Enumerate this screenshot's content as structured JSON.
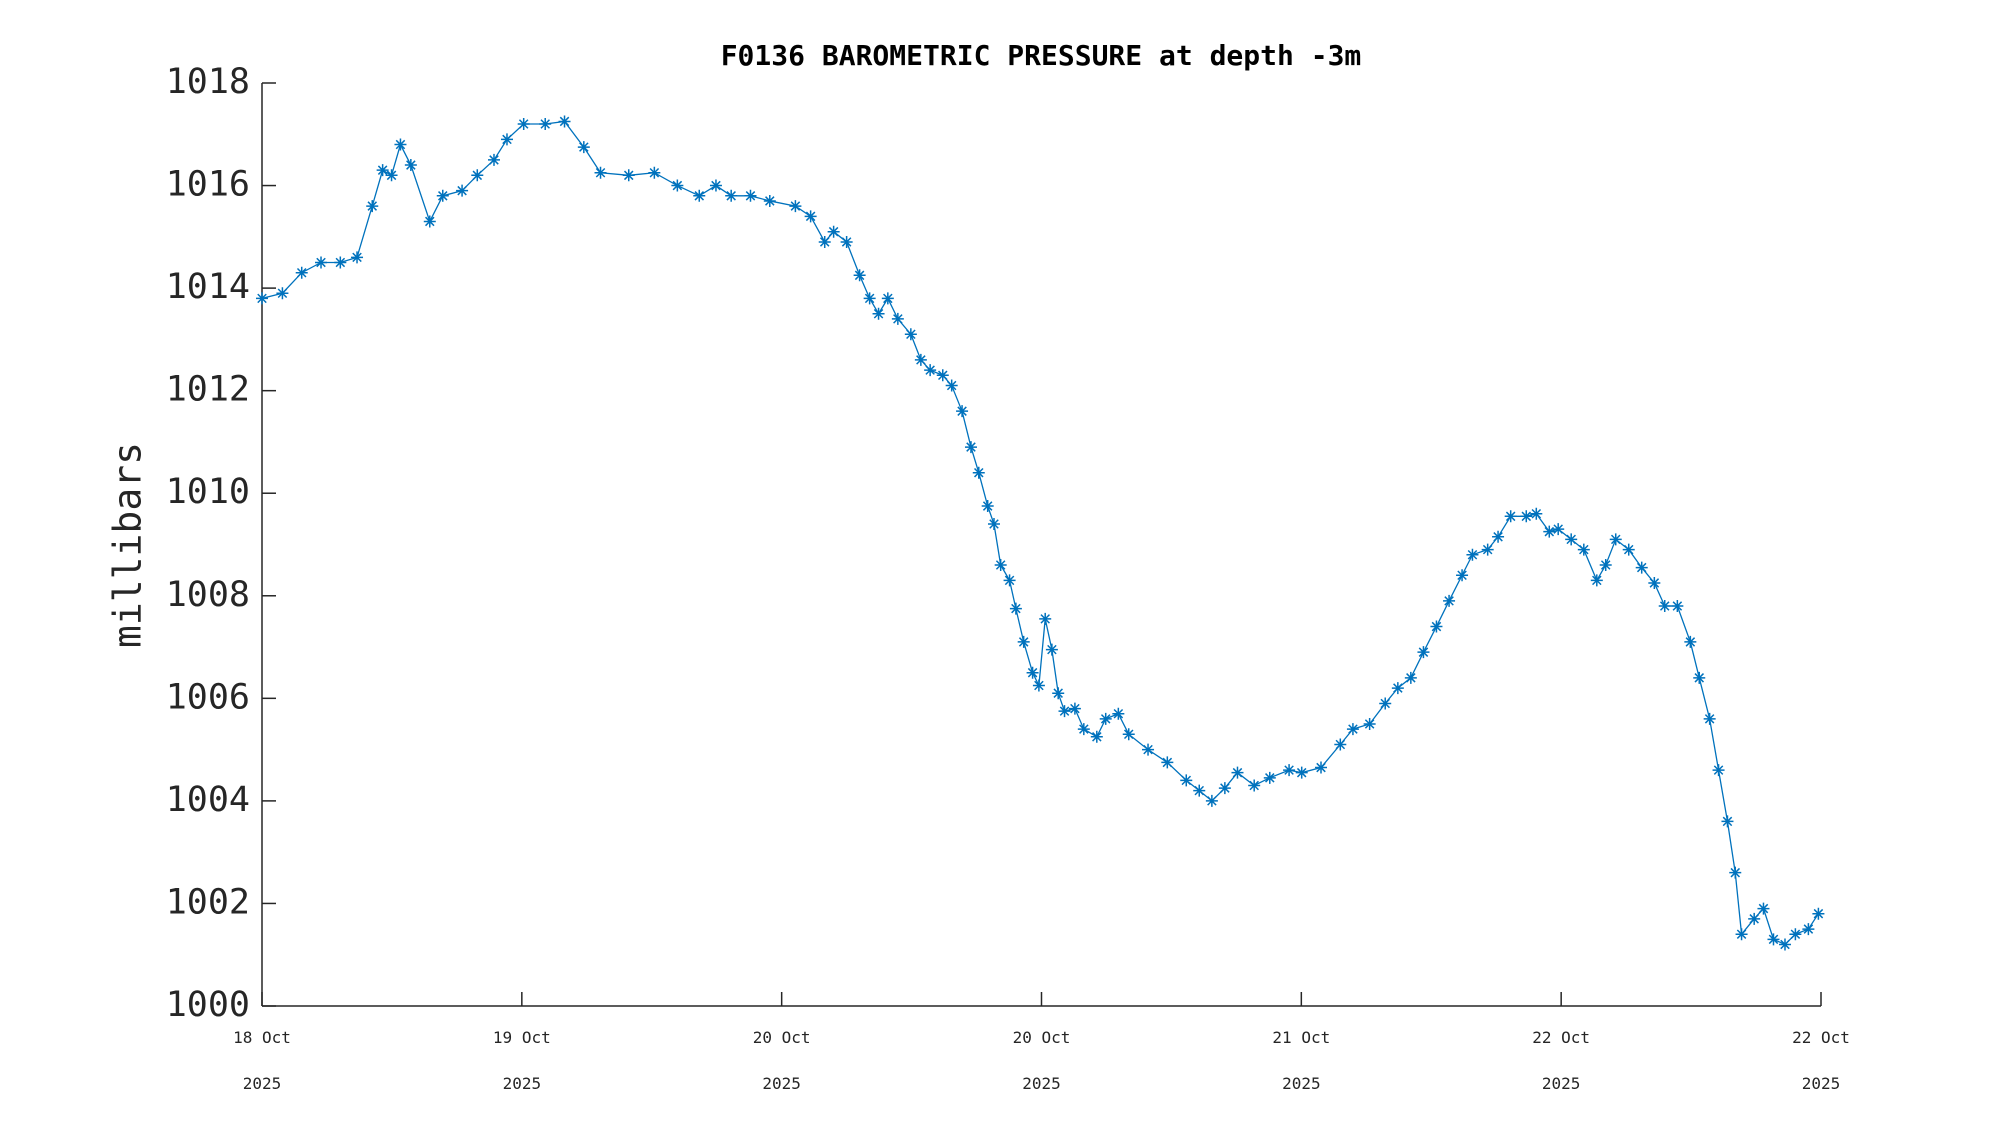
{
  "chart_data": {
    "type": "line",
    "title": "F0136 BAROMETRIC PRESSURE at depth -3m",
    "y_label": "millibars",
    "marker": "asterisk",
    "grid": false,
    "x": [
      0.7,
      0.755,
      0.807,
      0.859,
      0.911,
      0.956,
      0.997,
      1.025,
      1.049,
      1.073,
      1.101,
      1.152,
      1.187,
      1.239,
      1.28,
      1.325,
      1.36,
      1.405,
      1.463,
      1.515,
      1.567,
      1.612,
      1.688,
      1.757,
      1.819,
      1.878,
      1.923,
      1.964,
      2.016,
      2.068,
      2.137,
      2.178,
      2.216,
      2.24,
      2.275,
      2.31,
      2.337,
      2.361,
      2.386,
      2.413,
      2.448,
      2.475,
      2.5,
      2.534,
      2.558,
      2.586,
      2.61,
      2.631,
      2.655,
      2.672,
      2.69,
      2.714,
      2.731,
      2.752,
      2.776,
      2.793,
      2.81,
      2.828,
      2.845,
      2.862,
      2.89,
      2.914,
      2.949,
      2.973,
      3.007,
      3.035,
      3.087,
      3.139,
      3.19,
      3.225,
      3.259,
      3.294,
      3.328,
      3.373,
      3.415,
      3.467,
      3.501,
      3.553,
      3.605,
      3.639,
      3.684,
      3.726,
      3.76,
      3.795,
      3.829,
      3.864,
      3.898,
      3.933,
      3.961,
      4.002,
      4.03,
      4.064,
      4.106,
      4.133,
      4.168,
      4.192,
      4.227,
      4.261,
      4.296,
      4.32,
      4.347,
      4.382,
      4.417,
      4.451,
      4.479,
      4.513,
      4.548,
      4.572,
      4.6,
      4.624,
      4.648,
      4.669,
      4.686,
      4.72,
      4.745,
      4.772,
      4.803,
      4.831,
      4.866,
      4.893
    ],
    "series": [
      {
        "color": "#0072BD",
        "values": [
          1013.8,
          1013.9,
          1014.3,
          1014.5,
          1014.5,
          1014.6,
          1015.6,
          1016.3,
          1016.2,
          1016.8,
          1016.4,
          1015.3,
          1015.8,
          1015.9,
          1016.2,
          1016.5,
          1016.9,
          1017.2,
          1017.2,
          1017.25,
          1016.75,
          1016.25,
          1016.2,
          1016.25,
          1016.0,
          1015.8,
          1016.0,
          1015.8,
          1015.8,
          1015.7,
          1015.6,
          1015.4,
          1014.9,
          1015.1,
          1014.9,
          1014.25,
          1013.8,
          1013.5,
          1013.8,
          1013.4,
          1013.1,
          1012.6,
          1012.4,
          1012.3,
          1012.1,
          1011.6,
          1010.9,
          1010.4,
          1009.75,
          1009.4,
          1008.6,
          1008.3,
          1007.75,
          1007.1,
          1006.5,
          1006.25,
          1007.55,
          1006.95,
          1006.1,
          1005.75,
          1005.8,
          1005.4,
          1005.25,
          1005.6,
          1005.7,
          1005.3,
          1005.0,
          1004.75,
          1004.4,
          1004.2,
          1004.0,
          1004.25,
          1004.55,
          1004.3,
          1004.45,
          1004.6,
          1004.55,
          1004.65,
          1005.1,
          1005.4,
          1005.5,
          1005.9,
          1006.2,
          1006.4,
          1006.9,
          1007.4,
          1007.9,
          1008.4,
          1008.8,
          1008.9,
          1009.15,
          1009.55,
          1009.55,
          1009.6,
          1009.25,
          1009.3,
          1009.1,
          1008.9,
          1008.3,
          1008.6,
          1009.1,
          1008.9,
          1008.55,
          1008.25,
          1007.8,
          1007.8,
          1007.1,
          1006.4,
          1005.6,
          1004.6,
          1003.6,
          1002.6,
          1001.4,
          1001.7,
          1001.9,
          1001.3,
          1001.2,
          1001.4,
          1001.5,
          1001.8
        ]
      }
    ],
    "xlim": [
      0.7,
      4.9
    ],
    "xticks": [
      {
        "value": 0.7,
        "label": "18 Oct\n2025"
      },
      {
        "value": 1.4,
        "label": "19 Oct\n2025"
      },
      {
        "value": 2.1,
        "label": "20 Oct\n2025"
      },
      {
        "value": 2.8,
        "label": "20 Oct\n2025"
      },
      {
        "value": 3.5,
        "label": "21 Oct\n2025"
      },
      {
        "value": 4.2,
        "label": "22 Oct\n2025"
      },
      {
        "value": 4.9,
        "label": "22 Oct\n2025"
      }
    ],
    "ylim": [
      1000,
      1018
    ],
    "yticks": [
      1000,
      1002,
      1004,
      1006,
      1008,
      1010,
      1012,
      1014,
      1016,
      1018
    ]
  }
}
